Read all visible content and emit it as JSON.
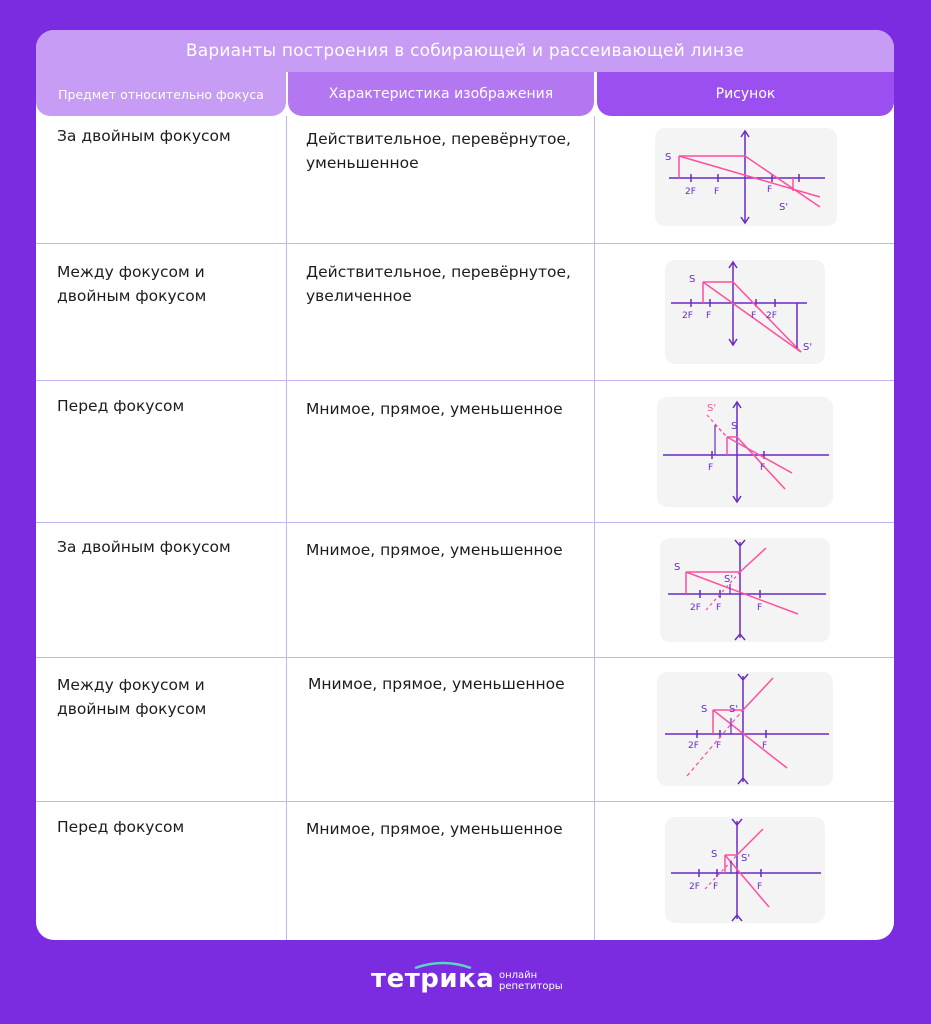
{
  "title": "Варианты построения в собирающей и рассеивающей линзе",
  "headers": {
    "col1": "Предмет относительно фокуса",
    "col2": "Характеристика изображения",
    "col3": "Рисунок"
  },
  "rows": [
    {
      "position": "За двойным фокусом",
      "description": "Действительное, перевёрнутое, уменьшенное",
      "lens": "converging"
    },
    {
      "position": "Между фокусом и двойным фокусом",
      "description": "Действительное, перевёрнутое, увеличенное",
      "lens": "converging"
    },
    {
      "position": "Перед фокусом",
      "description": "Мнимое, прямое, уменьшенное",
      "lens": "converging"
    },
    {
      "position": "За двойным фокусом",
      "description": "Мнимое, прямое, уменьшенное",
      "lens": "diverging"
    },
    {
      "position": "Между фокусом и двойным фокусом",
      "description": "Мнимое, прямое, уменьшенное",
      "lens": "diverging"
    },
    {
      "position": "Перед фокусом",
      "description": "Мнимое, прямое, уменьшенное",
      "lens": "diverging"
    }
  ],
  "diagram_labels": {
    "object": "S",
    "image": "S'",
    "focus": "F",
    "double_focus": "2F"
  },
  "brand": {
    "name": "тетрика",
    "tagline_line1": "онлайн",
    "tagline_line2": "репетиторы"
  },
  "colors": {
    "background": "#7b2be0",
    "ray": "#ff4fa0",
    "axis": "#6a2bc4"
  }
}
